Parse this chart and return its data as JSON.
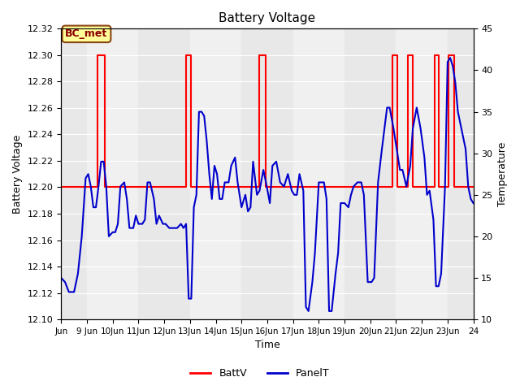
{
  "title": "Battery Voltage",
  "xlabel": "Time",
  "ylabel_left": "Battery Voltage",
  "ylabel_right": "Temperature",
  "xlim": [
    0,
    16
  ],
  "ylim_left": [
    12.1,
    12.32
  ],
  "ylim_right": [
    10,
    45
  ],
  "yticks_left": [
    12.1,
    12.12,
    12.14,
    12.16,
    12.18,
    12.2,
    12.22,
    12.24,
    12.26,
    12.28,
    12.3,
    12.32
  ],
  "yticks_right": [
    10,
    15,
    20,
    25,
    30,
    35,
    40,
    45
  ],
  "xtick_positions": [
    0,
    1,
    2,
    3,
    4,
    5,
    6,
    7,
    8,
    9,
    10,
    11,
    12,
    13,
    14,
    15,
    16
  ],
  "xtick_labels": [
    "Jun",
    "9 Jun",
    "10Jun",
    "11Jun",
    "12Jun",
    "13Jun",
    "14Jun",
    "15Jun",
    "16Jun",
    "17Jun",
    "18Jun",
    "19Jun",
    "20Jun",
    "21Jun",
    "22Jun",
    "23Jun",
    "24"
  ],
  "annotation_label": "BC_met",
  "annotation_bg": "#FFFF99",
  "annotation_border": "#8B4513",
  "bg_bands": [
    [
      0,
      1,
      "#e8e8e8"
    ],
    [
      1,
      3,
      "#f0f0f0"
    ],
    [
      3,
      5,
      "#e8e8e8"
    ],
    [
      5,
      7,
      "#f0f0f0"
    ],
    [
      7,
      9,
      "#e8e8e8"
    ],
    [
      9,
      11,
      "#f0f0f0"
    ],
    [
      11,
      13,
      "#e8e8e8"
    ],
    [
      13,
      15,
      "#f0f0f0"
    ],
    [
      15,
      16,
      "#e8e8e8"
    ]
  ],
  "batt_color": "#ff0000",
  "panel_color": "#0000cc",
  "batt_segments": [
    [
      0.0,
      12.2
    ],
    [
      1.4,
      12.2
    ],
    [
      1.4,
      12.3
    ],
    [
      1.7,
      12.3
    ],
    [
      1.7,
      12.2
    ],
    [
      4.85,
      12.2
    ],
    [
      4.85,
      12.3
    ],
    [
      5.05,
      12.3
    ],
    [
      5.05,
      12.2
    ],
    [
      7.7,
      12.2
    ],
    [
      7.7,
      12.3
    ],
    [
      7.95,
      12.3
    ],
    [
      7.95,
      12.2
    ],
    [
      12.85,
      12.2
    ],
    [
      12.85,
      12.3
    ],
    [
      13.05,
      12.3
    ],
    [
      13.05,
      12.2
    ],
    [
      13.45,
      12.2
    ],
    [
      13.45,
      12.3
    ],
    [
      13.65,
      12.3
    ],
    [
      13.65,
      12.2
    ],
    [
      14.5,
      12.2
    ],
    [
      14.5,
      12.3
    ],
    [
      14.65,
      12.3
    ],
    [
      14.65,
      12.2
    ],
    [
      15.05,
      12.2
    ],
    [
      15.05,
      12.3
    ],
    [
      15.25,
      12.3
    ],
    [
      15.25,
      12.2
    ],
    [
      16.0,
      12.2
    ]
  ],
  "panel_temps": [
    [
      0.0,
      15.0
    ],
    [
      0.15,
      14.5
    ],
    [
      0.3,
      13.3
    ],
    [
      0.5,
      13.3
    ],
    [
      0.65,
      15.5
    ],
    [
      0.8,
      20.0
    ],
    [
      0.95,
      27.0
    ],
    [
      1.05,
      27.5
    ],
    [
      1.15,
      26.0
    ],
    [
      1.25,
      23.5
    ],
    [
      1.35,
      23.5
    ],
    [
      1.45,
      26.0
    ],
    [
      1.55,
      29.0
    ],
    [
      1.65,
      29.0
    ],
    [
      1.75,
      26.0
    ],
    [
      1.85,
      20.0
    ],
    [
      2.0,
      20.5
    ],
    [
      2.1,
      20.5
    ],
    [
      2.2,
      21.5
    ],
    [
      2.3,
      26.0
    ],
    [
      2.45,
      26.5
    ],
    [
      2.55,
      24.5
    ],
    [
      2.65,
      21.0
    ],
    [
      2.8,
      21.0
    ],
    [
      2.9,
      22.5
    ],
    [
      3.0,
      21.5
    ],
    [
      3.15,
      21.5
    ],
    [
      3.25,
      22.0
    ],
    [
      3.35,
      26.5
    ],
    [
      3.45,
      26.5
    ],
    [
      3.6,
      24.5
    ],
    [
      3.7,
      21.5
    ],
    [
      3.8,
      22.5
    ],
    [
      3.95,
      21.5
    ],
    [
      4.05,
      21.5
    ],
    [
      4.2,
      21.0
    ],
    [
      4.35,
      21.0
    ],
    [
      4.5,
      21.0
    ],
    [
      4.65,
      21.5
    ],
    [
      4.75,
      21.0
    ],
    [
      4.85,
      21.5
    ],
    [
      4.95,
      12.5
    ],
    [
      5.05,
      12.5
    ],
    [
      5.15,
      23.5
    ],
    [
      5.25,
      25.0
    ],
    [
      5.35,
      35.0
    ],
    [
      5.45,
      35.0
    ],
    [
      5.55,
      34.5
    ],
    [
      5.65,
      31.5
    ],
    [
      5.75,
      27.5
    ],
    [
      5.85,
      24.5
    ],
    [
      5.95,
      28.5
    ],
    [
      6.05,
      27.5
    ],
    [
      6.15,
      24.5
    ],
    [
      6.25,
      24.5
    ],
    [
      6.35,
      26.5
    ],
    [
      6.5,
      26.5
    ],
    [
      6.6,
      28.5
    ],
    [
      6.75,
      29.5
    ],
    [
      6.85,
      26.5
    ],
    [
      7.0,
      23.5
    ],
    [
      7.15,
      25.0
    ],
    [
      7.25,
      23.0
    ],
    [
      7.35,
      23.5
    ],
    [
      7.45,
      29.0
    ],
    [
      7.6,
      25.0
    ],
    [
      7.7,
      25.5
    ],
    [
      7.85,
      28.0
    ],
    [
      7.95,
      26.5
    ],
    [
      8.1,
      24.0
    ],
    [
      8.2,
      28.5
    ],
    [
      8.35,
      29.0
    ],
    [
      8.5,
      26.5
    ],
    [
      8.65,
      26.0
    ],
    [
      8.8,
      27.5
    ],
    [
      8.95,
      25.5
    ],
    [
      9.05,
      25.0
    ],
    [
      9.15,
      25.0
    ],
    [
      9.25,
      27.5
    ],
    [
      9.4,
      25.5
    ],
    [
      9.5,
      11.5
    ],
    [
      9.6,
      11.0
    ],
    [
      9.75,
      14.5
    ],
    [
      9.85,
      18.0
    ],
    [
      10.0,
      26.5
    ],
    [
      10.1,
      26.5
    ],
    [
      10.2,
      26.5
    ],
    [
      10.3,
      24.5
    ],
    [
      10.4,
      11.0
    ],
    [
      10.5,
      11.0
    ],
    [
      10.65,
      15.5
    ],
    [
      10.75,
      18.0
    ],
    [
      10.85,
      24.0
    ],
    [
      11.0,
      24.0
    ],
    [
      11.15,
      23.5
    ],
    [
      11.25,
      25.0
    ],
    [
      11.35,
      26.0
    ],
    [
      11.5,
      26.5
    ],
    [
      11.65,
      26.5
    ],
    [
      11.75,
      25.0
    ],
    [
      11.9,
      14.5
    ],
    [
      12.05,
      14.5
    ],
    [
      12.15,
      15.0
    ],
    [
      12.3,
      26.5
    ],
    [
      12.45,
      30.5
    ],
    [
      12.55,
      33.0
    ],
    [
      12.65,
      35.5
    ],
    [
      12.75,
      35.5
    ],
    [
      12.9,
      33.0
    ],
    [
      13.05,
      30.0
    ],
    [
      13.15,
      28.0
    ],
    [
      13.25,
      28.0
    ],
    [
      13.4,
      26.0
    ],
    [
      13.55,
      28.5
    ],
    [
      13.65,
      33.0
    ],
    [
      13.8,
      35.5
    ],
    [
      13.95,
      33.0
    ],
    [
      14.1,
      29.5
    ],
    [
      14.2,
      25.0
    ],
    [
      14.3,
      25.5
    ],
    [
      14.45,
      22.0
    ],
    [
      14.55,
      14.0
    ],
    [
      14.65,
      14.0
    ],
    [
      14.75,
      15.5
    ],
    [
      14.9,
      26.0
    ],
    [
      15.0,
      41.0
    ],
    [
      15.1,
      41.5
    ],
    [
      15.2,
      40.5
    ],
    [
      15.3,
      38.5
    ],
    [
      15.4,
      35.0
    ],
    [
      15.5,
      33.5
    ],
    [
      15.6,
      32.0
    ],
    [
      15.7,
      30.5
    ],
    [
      15.8,
      26.0
    ],
    [
      15.9,
      24.5
    ],
    [
      16.0,
      24.0
    ]
  ]
}
